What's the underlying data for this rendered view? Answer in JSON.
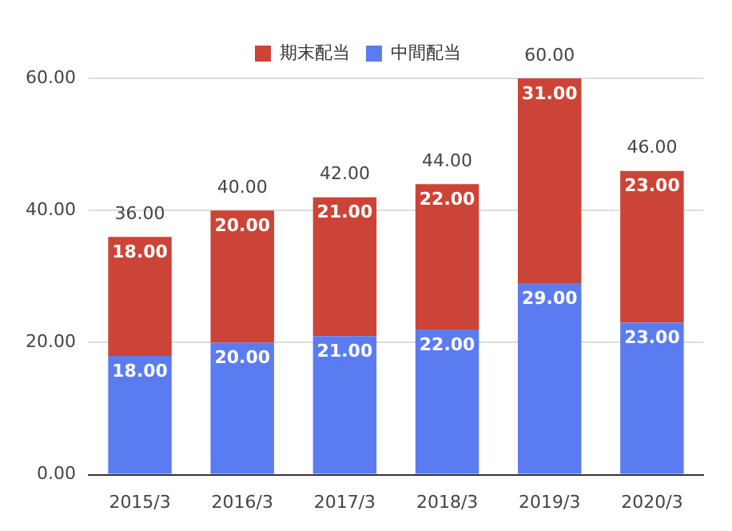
{
  "chart_data": {
    "type": "bar",
    "stacked": true,
    "categories": [
      "2015/3",
      "2016/3",
      "2017/3",
      "2018/3",
      "2019/3",
      "2020/3"
    ],
    "series": [
      {
        "name": "中間配当",
        "color": "#5b7cf0",
        "values": [
          18,
          20,
          21,
          22,
          29,
          23
        ],
        "value_labels": [
          "18.00",
          "20.00",
          "21.00",
          "22.00",
          "29.00",
          "23.00"
        ]
      },
      {
        "name": "期末配当",
        "color": "#cc4437",
        "values": [
          18,
          20,
          21,
          22,
          31,
          23
        ],
        "value_labels": [
          "18.00",
          "20.00",
          "21.00",
          "22.00",
          "31.00",
          "23.00"
        ]
      }
    ],
    "totals": [
      "36.00",
      "40.00",
      "42.00",
      "44.00",
      "60.00",
      "46.00"
    ],
    "ylim": [
      0,
      60
    ],
    "yticks": [
      {
        "value": 0,
        "label": "0.00"
      },
      {
        "value": 20,
        "label": "20.00"
      },
      {
        "value": 40,
        "label": "40.00"
      },
      {
        "value": 60,
        "label": "60.00"
      }
    ],
    "grid": "y",
    "legend": "top"
  }
}
